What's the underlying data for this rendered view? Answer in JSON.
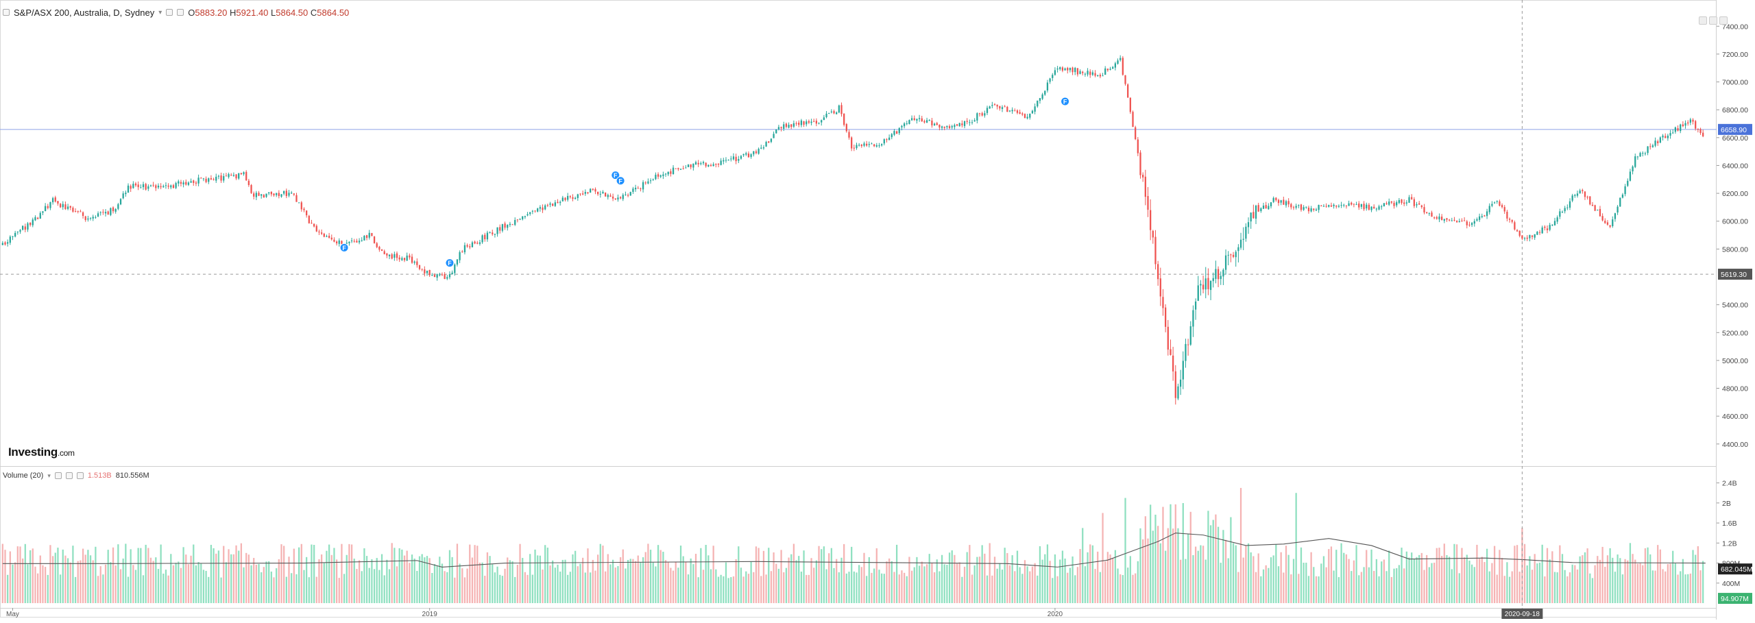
{
  "header": {
    "symbol_label": "S&P/ASX 200, Australia, D, Sydney",
    "dropdown_glyph": "▾",
    "open_label": "O",
    "open_value": "5883.20",
    "high_label": "H",
    "high_value": "5921.40",
    "low_label": "L",
    "low_value": "5864.50",
    "close_label": "C",
    "close_value": "5864.50"
  },
  "volume_header": {
    "label": "Volume (20)",
    "dropdown_glyph": "▾",
    "value1": "1.513B",
    "value2": "810.556M"
  },
  "logo": {
    "main": "Investing",
    "suffix": ".com"
  },
  "price_axis": {
    "ticks": [
      "7400.00",
      "7200.00",
      "7000.00",
      "6800.00",
      "6600.00",
      "6400.00",
      "6200.00",
      "6000.00",
      "5800.00",
      "5400.00",
      "5200.00",
      "5000.00",
      "4800.00",
      "4600.00",
      "4400.00"
    ],
    "tick_values": [
      7400,
      7200,
      7000,
      6800,
      6600,
      6400,
      6200,
      6000,
      5800,
      5400,
      5200,
      5000,
      4800,
      4600,
      4400
    ],
    "current_label": "6658.90",
    "current_value": 6658.9,
    "cursor_label": "5619.30",
    "cursor_value": 5619.3
  },
  "volume_axis": {
    "ticks": [
      "2.4B",
      "2B",
      "1.6B",
      "1.2B",
      "800M",
      "400M"
    ],
    "tick_values": [
      2400,
      2000,
      1600,
      1200,
      800,
      400
    ],
    "ma_label": "682.045M",
    "ma_value": 682,
    "last_label": "94.907M",
    "last_value": 95
  },
  "time_axis": {
    "labels": [
      {
        "text": "May",
        "index": 4
      },
      {
        "text": "2019",
        "index": 170
      },
      {
        "text": "2020",
        "index": 419
      },
      {
        "text": "2020-09-18",
        "index": 605
      }
    ],
    "cursor_index": 605,
    "cursor_label": "2020-09-18"
  },
  "colors": {
    "up": "#26a69a",
    "down": "#ef5350",
    "vol_up": "#8fe0c0",
    "vol_down": "#f5b3b3",
    "current_line": "#8da2e8",
    "current_badge": "#4a72d9",
    "cursor_badge": "#555555",
    "ma_badge": "#222222",
    "last_vol_badge": "#3cb371",
    "marker": "#1e90ff"
  },
  "chart_data": {
    "type": "candlestick",
    "title": "S&P/ASX 200, Australia, D, Sydney",
    "xlabel": "",
    "ylabel": "",
    "ylim": [
      4340,
      7480
    ],
    "volume_ylim": [
      0,
      2600
    ],
    "grid": false,
    "anchors": [
      [
        0,
        5840
      ],
      [
        12,
        6000
      ],
      [
        20,
        6150
      ],
      [
        34,
        6020
      ],
      [
        44,
        6080
      ],
      [
        50,
        6250
      ],
      [
        62,
        6240
      ],
      [
        80,
        6300
      ],
      [
        96,
        6330
      ],
      [
        100,
        6180
      ],
      [
        115,
        6200
      ],
      [
        124,
        5950
      ],
      [
        135,
        5830
      ],
      [
        146,
        5900
      ],
      [
        152,
        5760
      ],
      [
        162,
        5730
      ],
      [
        170,
        5620
      ],
      [
        178,
        5600
      ],
      [
        182,
        5790
      ],
      [
        200,
        5970
      ],
      [
        215,
        6100
      ],
      [
        235,
        6230
      ],
      [
        245,
        6150
      ],
      [
        258,
        6300
      ],
      [
        272,
        6400
      ],
      [
        285,
        6420
      ],
      [
        300,
        6490
      ],
      [
        310,
        6680
      ],
      [
        325,
        6720
      ],
      [
        333,
        6810
      ],
      [
        338,
        6520
      ],
      [
        350,
        6560
      ],
      [
        362,
        6740
      ],
      [
        376,
        6680
      ],
      [
        385,
        6720
      ],
      [
        396,
        6840
      ],
      [
        408,
        6730
      ],
      [
        420,
        7100
      ],
      [
        437,
        7050
      ],
      [
        445,
        7160
      ],
      [
        453,
        6400
      ],
      [
        460,
        5650
      ],
      [
        467,
        4750
      ],
      [
        476,
        5500
      ],
      [
        484,
        5600
      ],
      [
        497,
        6000
      ],
      [
        505,
        6150
      ],
      [
        520,
        6080
      ],
      [
        530,
        6120
      ],
      [
        545,
        6100
      ],
      [
        560,
        6150
      ],
      [
        573,
        6000
      ],
      [
        586,
        5980
      ],
      [
        595,
        6150
      ],
      [
        605,
        5870
      ],
      [
        616,
        5960
      ],
      [
        628,
        6230
      ],
      [
        640,
        5950
      ],
      [
        650,
        6450
      ],
      [
        665,
        6650
      ],
      [
        672,
        6720
      ],
      [
        677,
        6620
      ]
    ],
    "candles_count": 678,
    "volume_spikes": [
      [
        430,
        1500
      ],
      [
        438,
        1800
      ],
      [
        447,
        2100
      ],
      [
        456,
        2400
      ],
      [
        464,
        1900
      ],
      [
        470,
        1600
      ],
      [
        493,
        2300
      ],
      [
        515,
        2200
      ],
      [
        605,
        1500
      ],
      [
        648,
        1200
      ]
    ],
    "volume_ma": [
      [
        0,
        790
      ],
      [
        40,
        790
      ],
      [
        120,
        800
      ],
      [
        165,
        850
      ],
      [
        175,
        720
      ],
      [
        200,
        800
      ],
      [
        300,
        830
      ],
      [
        400,
        790
      ],
      [
        420,
        720
      ],
      [
        440,
        860
      ],
      [
        460,
        1230
      ],
      [
        467,
        1400
      ],
      [
        478,
        1360
      ],
      [
        495,
        1150
      ],
      [
        510,
        1180
      ],
      [
        528,
        1290
      ],
      [
        545,
        1150
      ],
      [
        560,
        880
      ],
      [
        590,
        900
      ],
      [
        605,
        870
      ],
      [
        625,
        810
      ],
      [
        678,
        800
      ]
    ],
    "markers": [
      {
        "label": "F",
        "index": 136,
        "value": 5810
      },
      {
        "label": "F",
        "index": 178,
        "value": 5700
      },
      {
        "label": "F",
        "index": 244,
        "value": 6330
      },
      {
        "label": "F",
        "index": 246,
        "value": 6290
      },
      {
        "label": "F",
        "index": 423,
        "value": 6860
      }
    ]
  }
}
